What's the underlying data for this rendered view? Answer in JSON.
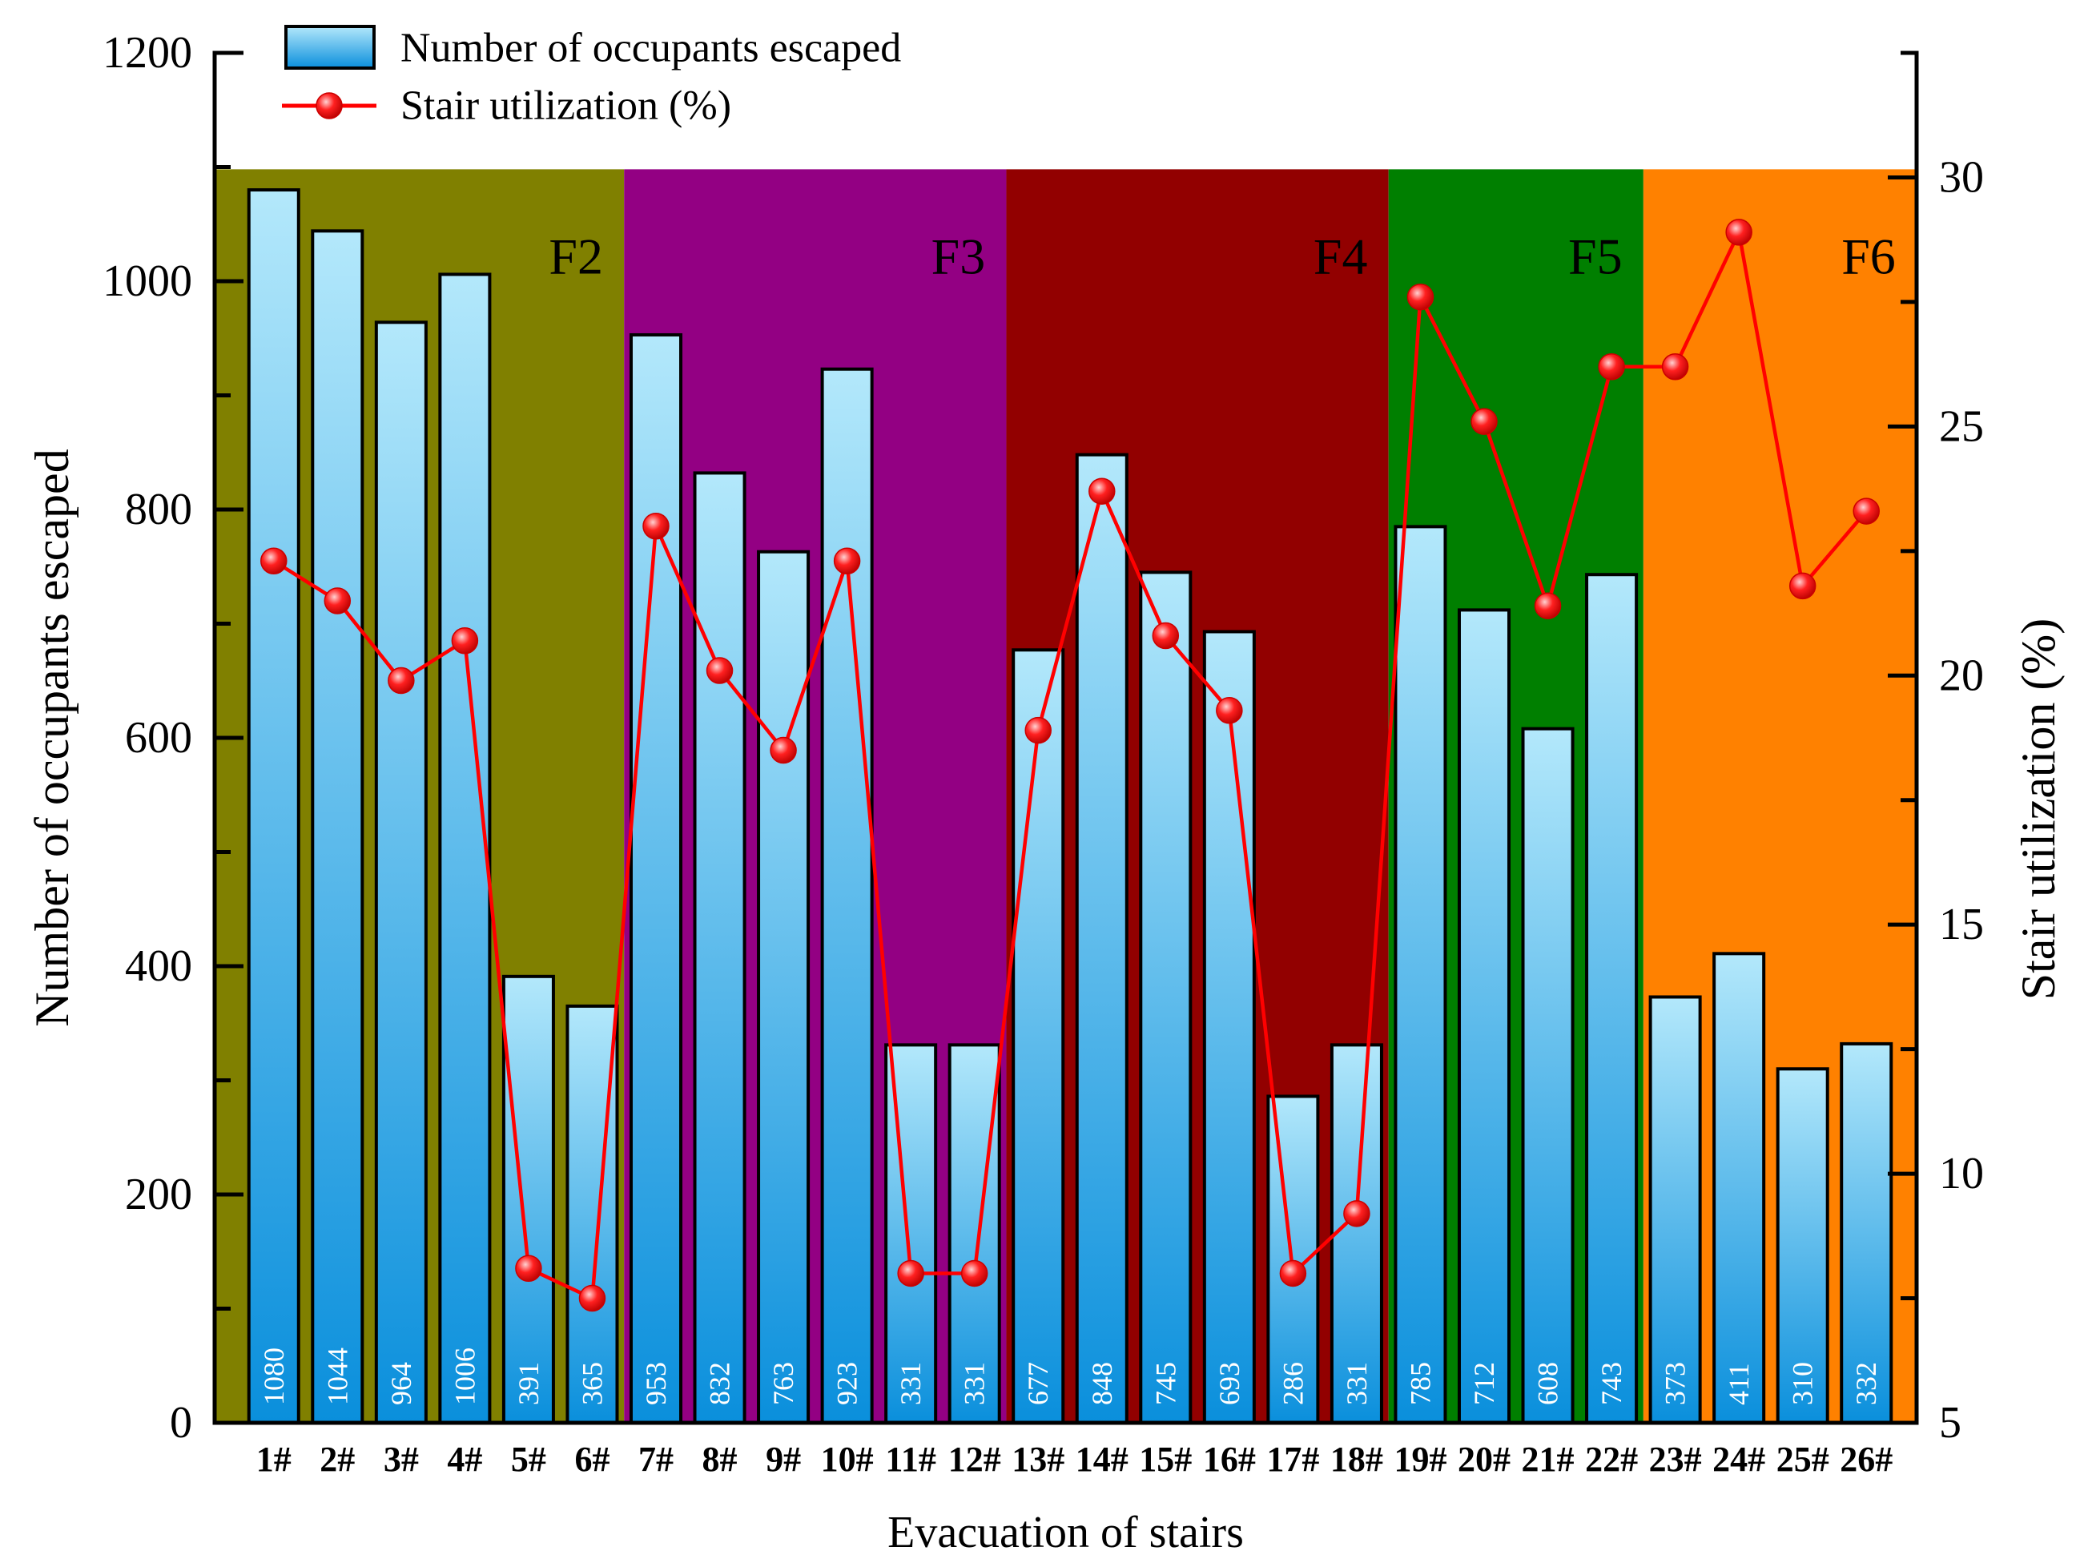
{
  "chart_data": {
    "type": "bar+line",
    "title": "",
    "xlabel": "Evacuation of stairs",
    "ylabel": "Number of occupants escaped",
    "y2label": "Stair utilization (%)",
    "ylim": [
      0,
      1200
    ],
    "y2lim": [
      5,
      32.5
    ],
    "yticks": [
      0,
      200,
      400,
      600,
      800,
      1000,
      1200
    ],
    "y2ticks": [
      5,
      10,
      15,
      20,
      25,
      30
    ],
    "categories": [
      "1#",
      "2#",
      "3#",
      "4#",
      "5#",
      "6#",
      "7#",
      "8#",
      "9#",
      "10#",
      "11#",
      "12#",
      "13#",
      "14#",
      "15#",
      "16#",
      "17#",
      "18#",
      "19#",
      "20#",
      "21#",
      "22#",
      "23#",
      "24#",
      "25#",
      "26#"
    ],
    "series": [
      {
        "name": "Number of occupants escaped",
        "type": "bar",
        "axis": "left",
        "values": [
          1080,
          1044,
          964,
          1006,
          391,
          365,
          953,
          832,
          763,
          923,
          331,
          331,
          677,
          848,
          745,
          693,
          286,
          331,
          785,
          712,
          608,
          743,
          373,
          411,
          310,
          332
        ],
        "labels": [
          "1080",
          "1044",
          "964",
          "1006",
          "391",
          "365",
          "953",
          "832",
          "763",
          "923",
          "331",
          "331",
          "677",
          "848",
          "745",
          "693",
          "286",
          "331",
          "785",
          "712",
          "608",
          "743",
          "373",
          "411",
          "310",
          "332"
        ]
      },
      {
        "name": "Stair utilization (%)",
        "type": "line",
        "axis": "right",
        "color": "#ff0000",
        "values": [
          22.3,
          21.5,
          19.9,
          20.7,
          8.1,
          7.5,
          23.0,
          20.1,
          18.5,
          22.3,
          8.0,
          8.0,
          18.9,
          23.7,
          20.8,
          19.3,
          8.0,
          9.2,
          27.6,
          25.1,
          21.4,
          26.2,
          26.2,
          28.9,
          21.8,
          23.3
        ]
      }
    ],
    "regions": [
      {
        "label": "F2",
        "color": "#808000",
        "from": 1,
        "to": 6
      },
      {
        "label": "F3",
        "color": "#930083",
        "from": 7,
        "to": 12
      },
      {
        "label": "F4",
        "color": "#920000",
        "from": 13,
        "to": 18
      },
      {
        "label": "F5",
        "color": "#007f00",
        "from": 19,
        "to": 22
      },
      {
        "label": "F6",
        "color": "#ff8100",
        "from": 23,
        "to": 26
      }
    ],
    "region_top_value": 1098,
    "legend": {
      "position": "top-left",
      "entries": [
        "Number of occupants escaped",
        "Stair utilization (%)"
      ]
    },
    "colors": {
      "bar_top": "#b3e8fb",
      "bar_bottom": "#0a8fdc",
      "bar_edge": "#000000",
      "line": "#ff0000"
    }
  }
}
